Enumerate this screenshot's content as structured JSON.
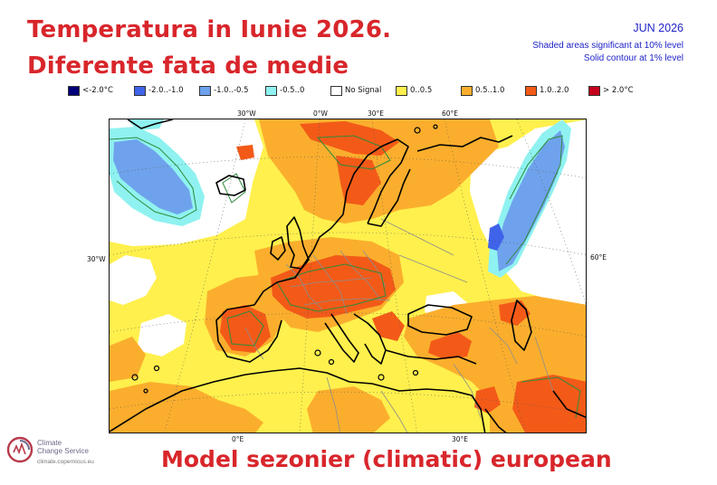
{
  "title": {
    "line1": "Temperatura in Iunie 2026.",
    "line2": "Diferente fata de medie"
  },
  "info": {
    "month": "JUN 2026",
    "line1": "Shaded areas significant at 10% level",
    "line2": "Solid contour at 1% level"
  },
  "legend": [
    {
      "label": "<-2.0°C",
      "color": "#00007a"
    },
    {
      "label": "-2.0..-1.0",
      "color": "#3f63e9"
    },
    {
      "label": "-1.0..-0.5",
      "color": "#6fa2ec"
    },
    {
      "label": "-0.5..0",
      "color": "#8ff2f0"
    },
    {
      "label": "No Signal",
      "color": "#ffffff"
    },
    {
      "label": "0..0.5",
      "color": "#fff04d"
    },
    {
      "label": "0.5..1.0",
      "color": "#fbae2d"
    },
    {
      "label": "1.0..2.0",
      "color": "#f35a18"
    },
    {
      "label": "> 2.0°C",
      "color": "#c6001c"
    }
  ],
  "map": {
    "top_labels": [
      "30°W",
      "0°W",
      "30°E",
      "60°E"
    ],
    "left_label": "30°W",
    "right_label": "60°E",
    "bottom_labels": [
      "0°E",
      "30°E"
    ]
  },
  "footer": "Model sezonier (climatic) european",
  "logo": {
    "line1": "Climate",
    "line2": "Change Service",
    "url": "climate.copernicus.eu",
    "icon": "copernicus-logo-icon"
  }
}
